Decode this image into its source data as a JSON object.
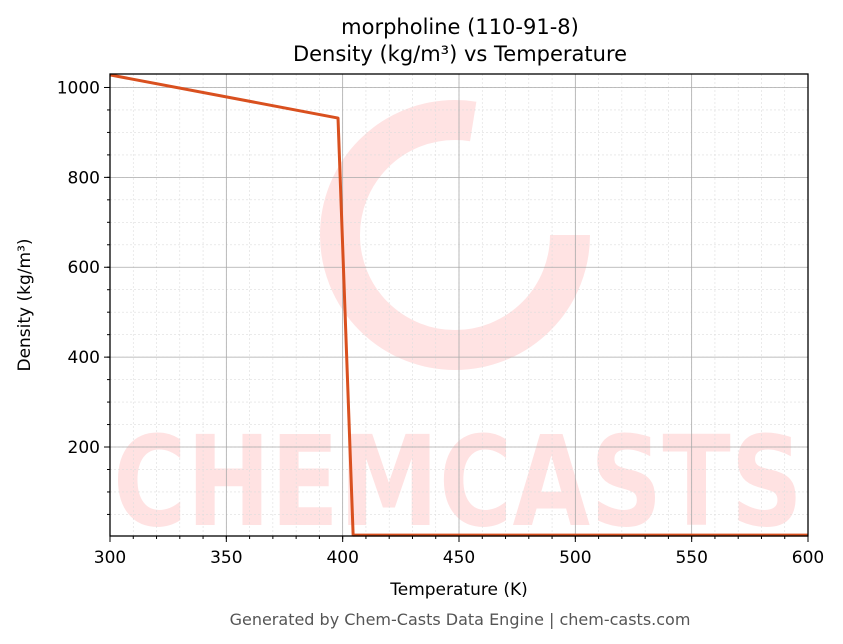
{
  "chart_data": {
    "type": "line",
    "title": "morpholine (110-91-8)",
    "subtitle": "Density (kg/m³) vs Temperature",
    "xlabel": "Temperature (K)",
    "ylabel": "Density (kg/m³)",
    "xlim": [
      300,
      600
    ],
    "ylim": [
      2,
      1030
    ],
    "xticks": [
      300,
      350,
      400,
      450,
      500,
      550,
      600
    ],
    "yticks": [
      200,
      400,
      600,
      800,
      1000
    ],
    "grid": true,
    "series": [
      {
        "color": "#d9501f",
        "x": [
          300,
          398,
          404.5,
          600
        ],
        "y": [
          1028,
          932,
          4,
          4
        ]
      }
    ],
    "watermark": "CHEMCASTS",
    "footer": "Generated by Chem-Casts Data Engine | chem-casts.com"
  }
}
